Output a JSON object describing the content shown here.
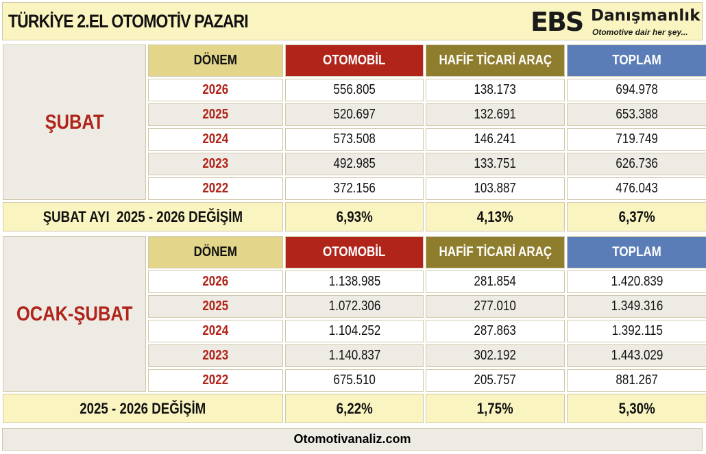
{
  "title": "TÜRKİYE 2.EL OTOMOTİV PAZARI",
  "logo": {
    "brand": "EBS",
    "name": "Danışmanlık",
    "tagline": "Otomotive dair her şey..."
  },
  "colors": {
    "otomobil": "#b0241a",
    "hafif": "#8f7d2e",
    "toplam": "#5a7db7",
    "donem": "#e3d68a",
    "highlight": "#faf5c0"
  },
  "sections": [
    {
      "label": "ŞUBAT",
      "headers": {
        "donem": "DÖNEM",
        "otomobil": "OTOMOBİL",
        "hafif": "HAFİF TİCARİ ARAÇ",
        "toplam": "TOPLAM"
      },
      "rows": [
        {
          "year": "2026",
          "otomobil": "556.805",
          "hafif": "138.173",
          "toplam": "694.978"
        },
        {
          "year": "2025",
          "otomobil": "520.697",
          "hafif": "132.691",
          "toplam": "653.388"
        },
        {
          "year": "2024",
          "otomobil": "573.508",
          "hafif": "146.241",
          "toplam": "719.749"
        },
        {
          "year": "2023",
          "otomobil": "492.985",
          "hafif": "133.751",
          "toplam": "626.736"
        },
        {
          "year": "2022",
          "otomobil": "372.156",
          "hafif": "103.887",
          "toplam": "476.043"
        }
      ],
      "change": {
        "label": "ŞUBAT AYI  2025 - 2026 DEĞİŞİM",
        "otomobil": "6,93%",
        "hafif": "4,13%",
        "toplam": "6,37%"
      }
    },
    {
      "label": "OCAK-ŞUBAT",
      "headers": {
        "donem": "DÖNEM",
        "otomobil": "OTOMOBİL",
        "hafif": "HAFİF TİCARİ ARAÇ",
        "toplam": "TOPLAM"
      },
      "rows": [
        {
          "year": "2026",
          "otomobil": "1.138.985",
          "hafif": "281.854",
          "toplam": "1.420.839"
        },
        {
          "year": "2025",
          "otomobil": "1.072.306",
          "hafif": "277.010",
          "toplam": "1.349.316"
        },
        {
          "year": "2024",
          "otomobil": "1.104.252",
          "hafif": "287.863",
          "toplam": "1.392.115"
        },
        {
          "year": "2023",
          "otomobil": "1.140.837",
          "hafif": "302.192",
          "toplam": "1.443.029"
        },
        {
          "year": "2022",
          "otomobil": "675.510",
          "hafif": "205.757",
          "toplam": "881.267"
        }
      ],
      "change": {
        "label": "2025 - 2026 DEĞİŞİM",
        "otomobil": "6,22%",
        "hafif": "1,75%",
        "toplam": "5,30%"
      }
    }
  ],
  "footer": "Otomotivanaliz.com"
}
